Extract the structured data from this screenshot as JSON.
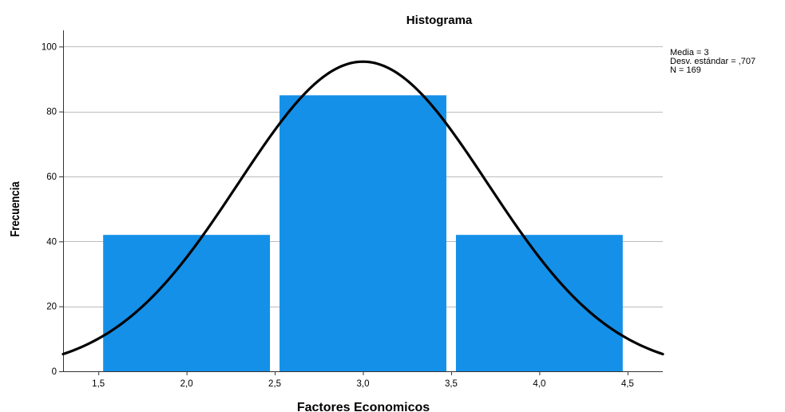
{
  "chart_data": {
    "type": "bar",
    "title": "Histograma",
    "xlabel": "Factores Economicos",
    "ylabel": "Frecuencia",
    "bins": [
      {
        "start": 1.5,
        "end": 2.5,
        "value": 42
      },
      {
        "start": 2.5,
        "end": 3.5,
        "value": 85
      },
      {
        "start": 3.5,
        "end": 4.5,
        "value": 42
      }
    ],
    "x_ticks": [
      {
        "value": 1.5,
        "label": "1,5"
      },
      {
        "value": 2.0,
        "label": "2,0"
      },
      {
        "value": 2.5,
        "label": "2,5"
      },
      {
        "value": 3.0,
        "label": "3,0"
      },
      {
        "value": 3.5,
        "label": "3,5"
      },
      {
        "value": 4.0,
        "label": "4,0"
      },
      {
        "value": 4.5,
        "label": "4,5"
      }
    ],
    "y_ticks": [
      {
        "value": 0,
        "label": "0"
      },
      {
        "value": 20,
        "label": "20"
      },
      {
        "value": 40,
        "label": "40"
      },
      {
        "value": 60,
        "label": "60"
      },
      {
        "value": 80,
        "label": "80"
      },
      {
        "value": 100,
        "label": "100"
      }
    ],
    "xlim": [
      1.3,
      4.7
    ],
    "ylim": [
      0,
      105
    ],
    "grid": "horizontal",
    "bar_color": "#1490e8",
    "curve_color": "#000000",
    "normal_curve": {
      "mean": 3,
      "std": 0.707,
      "n": 169,
      "bin_width": 1
    },
    "stats": {
      "mean_label": "Media = 3",
      "std_label": "Desv. estándar = ,707",
      "n_label": "N = 169"
    }
  }
}
